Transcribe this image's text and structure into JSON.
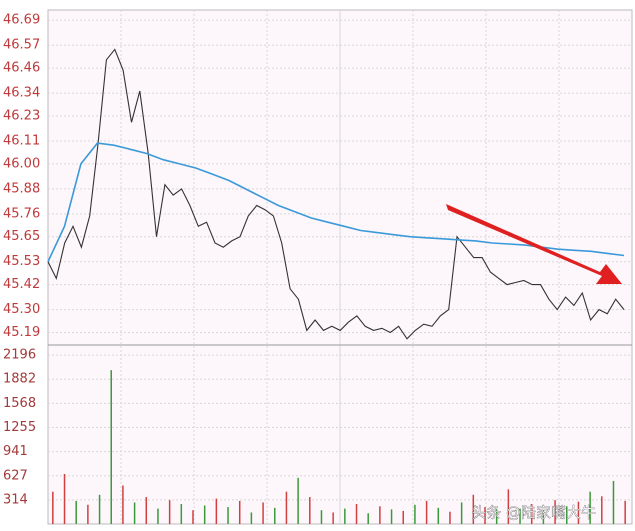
{
  "chart_data": [
    {
      "type": "line",
      "yticks": [
        {
          "value": 46.69,
          "label": "46.69"
        },
        {
          "value": 46.57,
          "label": "46.57"
        },
        {
          "value": 46.46,
          "label": "46.46"
        },
        {
          "value": 46.34,
          "label": "46.34"
        },
        {
          "value": 46.23,
          "label": "46.23"
        },
        {
          "value": 46.11,
          "label": "46.11"
        },
        {
          "value": 46.0,
          "label": "46.00"
        },
        {
          "value": 45.88,
          "label": "45.88"
        },
        {
          "value": 45.76,
          "label": "45.76"
        },
        {
          "value": 45.65,
          "label": "45.65"
        },
        {
          "value": 45.53,
          "label": "45.53"
        },
        {
          "value": 45.42,
          "label": "45.42"
        },
        {
          "value": 45.3,
          "label": "45.30"
        },
        {
          "value": 45.19,
          "label": "45.19"
        }
      ],
      "ylim": [
        45.13,
        46.72
      ],
      "tick_color": "#c0393b",
      "grid": true,
      "series": [
        {
          "color": "#333333",
          "values": [
            45.53,
            45.45,
            45.62,
            45.7,
            45.6,
            45.75,
            46.1,
            46.5,
            46.55,
            46.45,
            46.2,
            46.35,
            46.05,
            45.65,
            45.9,
            45.85,
            45.88,
            45.8,
            45.7,
            45.72,
            45.62,
            45.6,
            45.63,
            45.65,
            45.75,
            45.8,
            45.78,
            45.75,
            45.62,
            45.4,
            45.35,
            45.2,
            45.25,
            45.2,
            45.22,
            45.2,
            45.24,
            45.27,
            45.22,
            45.2,
            45.21,
            45.19,
            45.22,
            45.16,
            45.2,
            45.23,
            45.22,
            45.27,
            45.3,
            45.65,
            45.6,
            45.55,
            45.55,
            45.48,
            45.45,
            45.42,
            45.43,
            45.44,
            45.42,
            45.42,
            45.35,
            45.3,
            45.36,
            45.32,
            45.38,
            45.25,
            45.3,
            45.28,
            45.35,
            45.3
          ]
        },
        {
          "color": "#3a9ad9",
          "values": [
            45.53,
            45.7,
            46.0,
            46.1,
            46.09,
            46.07,
            46.05,
            46.02,
            46.0,
            45.98,
            45.95,
            45.92,
            45.88,
            45.84,
            45.8,
            45.77,
            45.74,
            45.72,
            45.7,
            45.68,
            45.67,
            45.66,
            45.65,
            45.645,
            45.64,
            45.635,
            45.63,
            45.62,
            45.615,
            45.61,
            45.6,
            45.59,
            45.585,
            45.58,
            45.57,
            45.56
          ]
        }
      ]
    },
    {
      "type": "bar",
      "yticks": [
        2196,
        1882,
        1568,
        1255,
        941,
        627,
        314
      ],
      "ylim": [
        0,
        2327
      ],
      "tick_color": "#a33a3a",
      "grid": true,
      "values": [
        420,
        650,
        300,
        250,
        380,
        2000,
        500,
        280,
        350,
        200,
        310,
        260,
        180,
        240,
        330,
        220,
        300,
        150,
        280,
        210,
        420,
        600,
        350,
        180,
        150,
        200,
        260,
        140,
        230,
        190,
        170,
        250,
        300,
        210,
        160,
        280,
        380,
        220,
        190,
        450,
        200,
        260,
        180,
        310,
        230,
        290,
        420,
        360,
        560,
        300
      ],
      "bar_colors": [
        "#d04040",
        "#d04040",
        "#3a9a3a",
        "#d04040",
        "#3a9a3a",
        "#3a9a3a",
        "#d04040",
        "#3a9a3a",
        "#d04040",
        "#3a9a3a",
        "#d04040",
        "#3a9a3a",
        "#d04040",
        "#3a9a3a",
        "#d04040",
        "#3a9a3a",
        "#d04040",
        "#3a9a3a",
        "#d04040",
        "#3a9a3a",
        "#d04040",
        "#3a9a3a",
        "#d04040",
        "#3a9a3a",
        "#d04040",
        "#3a9a3a",
        "#d04040",
        "#3a9a3a",
        "#d04040",
        "#3a9a3a",
        "#d04040",
        "#3a9a3a",
        "#d04040",
        "#3a9a3a",
        "#d04040",
        "#3a9a3a",
        "#d04040",
        "#d04040",
        "#3a9a3a",
        "#d04040",
        "#3a9a3a",
        "#d04040",
        "#3a9a3a",
        "#d04040",
        "#3a9a3a",
        "#d04040",
        "#3a9a3a",
        "#d04040",
        "#3a9a3a",
        "#d04040"
      ]
    }
  ],
  "watermark": "头条 @陆家嘴大牛"
}
